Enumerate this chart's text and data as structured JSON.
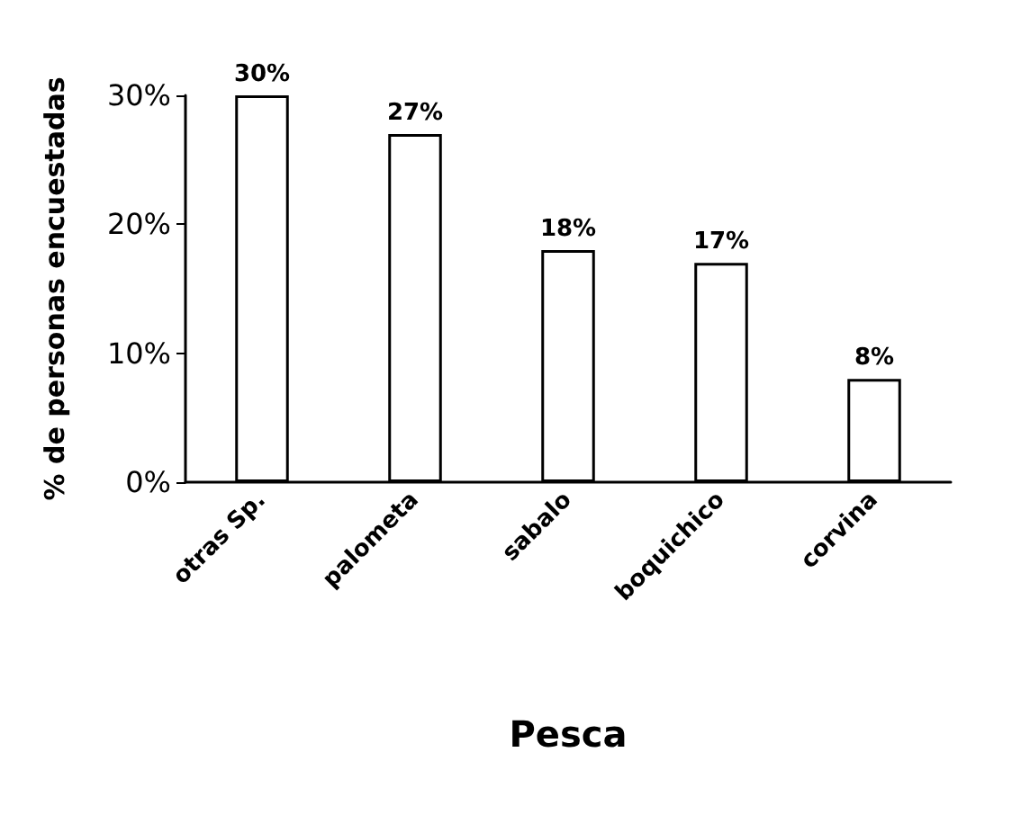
{
  "chart_data": {
    "type": "bar",
    "xlabel": "Pesca",
    "ylabel": "% de personas encuestadas",
    "categories": [
      "otras Sp.",
      "palometa",
      "sabalo",
      "boquichico",
      "corvina"
    ],
    "values": [
      30,
      27,
      18,
      17,
      8
    ],
    "value_labels": [
      "30%",
      "27%",
      "18%",
      "17%",
      "8%"
    ],
    "color": "#ffffff",
    "ylim": [
      0,
      30
    ],
    "yticks": [
      {
        "value": 0,
        "label": "0%"
      },
      {
        "value": 10,
        "label": "10%"
      },
      {
        "value": 20,
        "label": "20%"
      },
      {
        "value": 30,
        "label": "30%"
      }
    ],
    "grid": false
  }
}
